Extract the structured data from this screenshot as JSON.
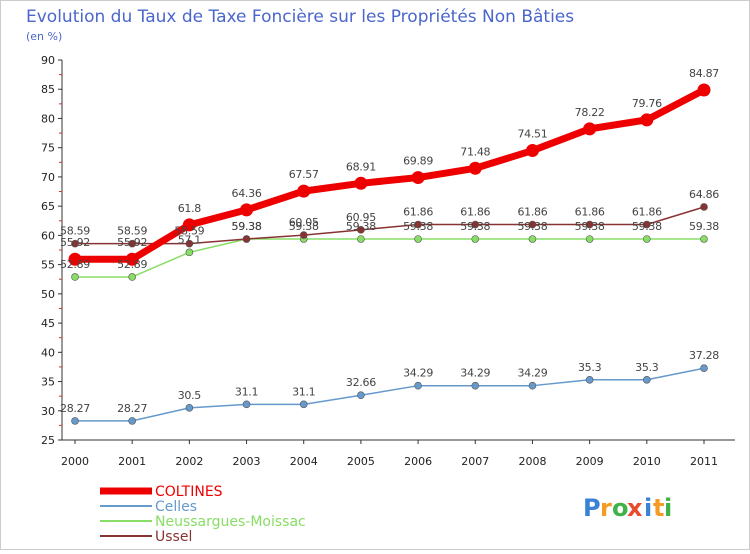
{
  "chart_data": {
    "type": "line",
    "title": "Evolution du Taux de Taxe Foncière sur les Propriétés Non Bâties",
    "subtitle": "(en %)",
    "xlabel": "",
    "ylabel": "",
    "categories": [
      "2000",
      "2001",
      "2002",
      "2003",
      "2004",
      "2005",
      "2006",
      "2007",
      "2008",
      "2009",
      "2010",
      "2011"
    ],
    "ylim": [
      25,
      90
    ],
    "yticks": [
      25,
      30,
      35,
      40,
      45,
      50,
      55,
      60,
      65,
      70,
      75,
      80,
      85,
      90
    ],
    "grid": false,
    "legend_position": "bottom-left",
    "series": [
      {
        "name": "COLTINES",
        "color": "#ee0000",
        "values": [
          55.92,
          55.92,
          61.8,
          64.36,
          67.57,
          68.91,
          69.89,
          71.48,
          74.51,
          78.22,
          79.76,
          84.87
        ],
        "labels": [
          "55.92",
          "55.92",
          "61.8",
          "64.36",
          "67.57",
          "68.91",
          "69.89",
          "71.48",
          "74.51",
          "78.22",
          "79.76",
          "84.87"
        ]
      },
      {
        "name": "Celles",
        "color": "#6699cc",
        "values": [
          28.27,
          28.27,
          30.5,
          31.1,
          31.1,
          32.66,
          34.29,
          34.29,
          34.29,
          35.3,
          35.3,
          37.28
        ],
        "labels": [
          "28.27",
          "28.27",
          "30.5",
          "31.1",
          "31.1",
          "32.66",
          "34.29",
          "34.29",
          "34.29",
          "35.3",
          "35.3",
          "37.28"
        ]
      },
      {
        "name": "Neussargues-Moissac",
        "color": "#88dd66",
        "values": [
          52.89,
          52.89,
          57.1,
          59.38,
          59.38,
          59.38,
          59.38,
          59.38,
          59.38,
          59.38,
          59.38,
          59.38
        ],
        "labels": [
          "52.89",
          "52.89",
          "57.1",
          "59.38",
          "59.38",
          "59.38",
          "59.38",
          "59.38",
          "59.38",
          "59.38",
          "59.38",
          "59.38"
        ]
      },
      {
        "name": "Ussel",
        "color": "#883333",
        "values": [
          58.59,
          58.59,
          58.59,
          59.38,
          60.05,
          60.95,
          61.86,
          61.86,
          61.86,
          61.86,
          61.86,
          64.86
        ],
        "labels": [
          "58.59",
          "58.59",
          "58.59",
          "59.38",
          "60.05",
          "60.95",
          "61.86",
          "61.86",
          "61.86",
          "61.86",
          "61.86",
          "64.86"
        ]
      }
    ]
  },
  "logo": {
    "letters": [
      "P",
      "r",
      "o",
      "x",
      "i",
      "t",
      "i"
    ],
    "colors": [
      "#3b82d6",
      "#f59a23",
      "#3fb24a",
      "#e84a2e",
      "#3b82d6",
      "#f59a23",
      "#3fb24a"
    ]
  }
}
